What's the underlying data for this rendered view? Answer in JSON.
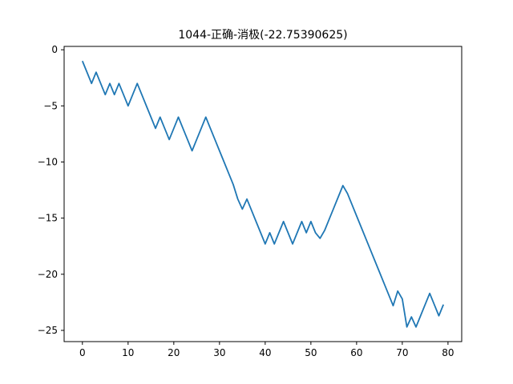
{
  "chart_data": {
    "type": "line",
    "title": "1044-正确-消极(-22.75390625)",
    "xlabel": "",
    "ylabel": "",
    "xlim": [
      -4,
      83
    ],
    "ylim": [
      -26,
      0.3
    ],
    "xticks": [
      0,
      10,
      20,
      30,
      40,
      50,
      60,
      70,
      80
    ],
    "yticks": [
      0,
      -5,
      -10,
      -15,
      -20,
      -25
    ],
    "grid": false,
    "line_color": "#1f77b4",
    "series": [
      {
        "x": [
          0,
          1,
          2,
          3,
          4,
          5,
          6,
          7,
          8,
          9,
          10,
          11,
          12,
          13,
          14,
          15,
          16,
          17,
          18,
          19,
          20,
          21,
          22,
          23,
          24,
          25,
          26,
          27,
          28,
          29,
          30,
          31,
          32,
          33,
          34,
          35,
          36,
          37,
          38,
          39,
          40,
          41,
          42,
          43,
          44,
          45,
          46,
          47,
          48,
          49,
          50,
          51,
          52,
          53,
          54,
          55,
          56,
          57,
          58,
          59,
          60,
          61,
          62,
          63,
          64,
          65,
          66,
          67,
          68,
          69,
          70,
          71,
          72,
          73,
          74,
          75,
          76,
          77,
          78,
          79
        ],
        "y": [
          -1,
          -2,
          -3,
          -2,
          -3,
          -4,
          -3,
          -4,
          -3,
          -4,
          -5,
          -4,
          -3,
          -4,
          -5,
          -6,
          -7,
          -6,
          -7,
          -8,
          -7,
          -6,
          -7,
          -8,
          -9,
          -8,
          -7,
          -6,
          -7,
          -8,
          -9,
          -10,
          -11,
          -12,
          -13.3,
          -14.2,
          -13.3,
          -14.3,
          -15.3,
          -16.3,
          -17.3,
          -16.3,
          -17.3,
          -16.3,
          -15.3,
          -16.3,
          -17.3,
          -16.3,
          -15.3,
          -16.3,
          -15.3,
          -16.3,
          -16.8,
          -16.1,
          -15.1,
          -14.1,
          -13.1,
          -12.1,
          -12.8,
          -13.8,
          -14.8,
          -15.8,
          -16.8,
          -17.8,
          -18.8,
          -19.8,
          -20.8,
          -21.8,
          -22.8,
          -21.5,
          -22.2,
          -24.7,
          -23.8,
          -24.7,
          -23.7,
          -22.7,
          -21.7,
          -22.7,
          -23.7,
          -22.7
        ]
      }
    ]
  }
}
